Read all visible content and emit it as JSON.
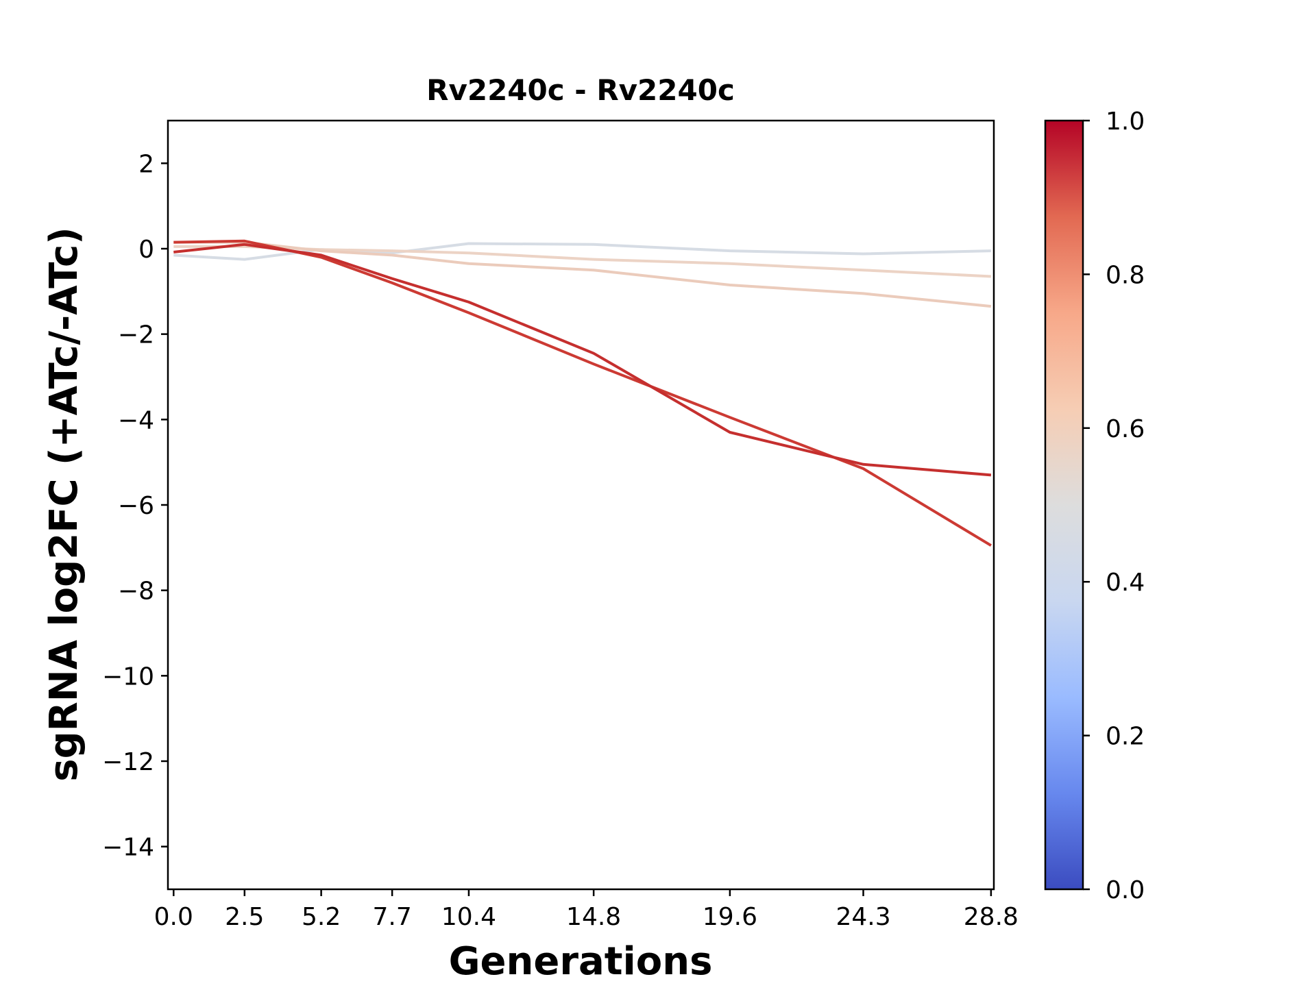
{
  "chart_data": {
    "type": "line",
    "title": "Rv2240c - Rv2240c",
    "xlabel": "Generations",
    "ylabel": "sgRNA log2FC (+ATc/-ATc)",
    "x": [
      0.0,
      2.5,
      5.2,
      7.7,
      10.4,
      14.8,
      19.6,
      24.3,
      28.8
    ],
    "x_tick_labels": [
      "0.0",
      "2.5",
      "5.2",
      "7.7",
      "10.4",
      "14.8",
      "19.6",
      "24.3",
      "28.8"
    ],
    "xlim": [
      -0.2,
      28.9
    ],
    "ylim": [
      -15,
      3
    ],
    "y_ticks": [
      2,
      0,
      -2,
      -4,
      -6,
      -8,
      -10,
      -12,
      -14
    ],
    "y_tick_labels": [
      "2",
      "0",
      "−2",
      "−4",
      "−6",
      "−8",
      "−10",
      "−12",
      "−14"
    ],
    "grid": false,
    "series": [
      {
        "color_value": 0.46,
        "color": "#d6dce4",
        "values": [
          -0.15,
          -0.25,
          -0.02,
          -0.1,
          0.12,
          0.1,
          -0.05,
          -0.12,
          -0.05
        ]
      },
      {
        "color_value": 0.58,
        "color": "#ecd3c5",
        "values": [
          0.05,
          0.05,
          -0.02,
          -0.05,
          -0.1,
          -0.25,
          -0.35,
          -0.5,
          -0.65
        ]
      },
      {
        "color_value": 0.6,
        "color": "#ebcbbb",
        "values": [
          0.15,
          0.15,
          -0.05,
          -0.15,
          -0.35,
          -0.5,
          -0.85,
          -1.05,
          -1.35
        ]
      },
      {
        "color_value": 0.93,
        "color": "#cc3a33",
        "values": [
          0.15,
          0.18,
          -0.2,
          -0.8,
          -1.5,
          -2.7,
          -3.95,
          -5.15,
          -6.95
        ]
      },
      {
        "color_value": 0.95,
        "color": "#c52f2e",
        "values": [
          -0.08,
          0.1,
          -0.15,
          -0.7,
          -1.25,
          -2.45,
          -4.3,
          -5.05,
          -5.3
        ]
      }
    ],
    "colorbar": {
      "range": [
        0.0,
        1.0
      ],
      "ticks": [
        0.0,
        0.2,
        0.4,
        0.6,
        0.8,
        1.0
      ],
      "tick_labels": [
        "0.0",
        "0.2",
        "0.4",
        "0.6",
        "0.8",
        "1.0"
      ],
      "colormap_stops": [
        "#3b4cc0",
        "#6788ee",
        "#9abbff",
        "#c9d7f0",
        "#dddddd",
        "#f6cdb4",
        "#f7a889",
        "#e26952",
        "#b40426"
      ]
    }
  }
}
